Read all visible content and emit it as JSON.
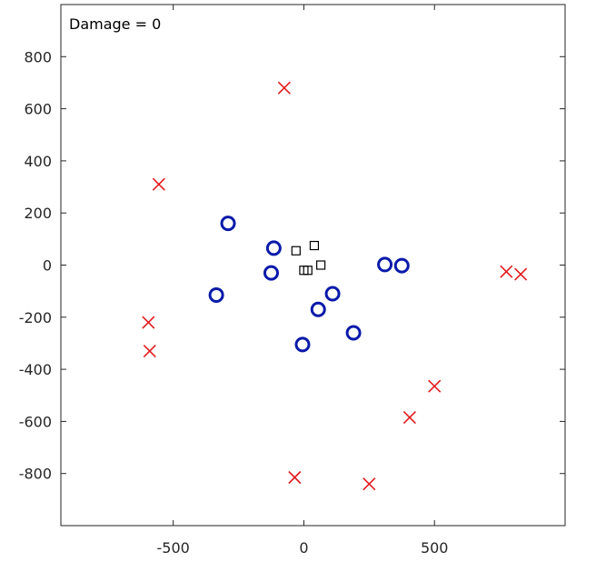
{
  "chart_data": {
    "type": "scatter",
    "title": "",
    "xlabel": "",
    "ylabel": "",
    "xlim": [
      -930,
      1000
    ],
    "ylim": [
      -1000,
      1000
    ],
    "xticks": [
      -500,
      0,
      500
    ],
    "yticks": [
      -800,
      -600,
      -400,
      -200,
      0,
      200,
      400,
      600,
      800
    ],
    "xtick_labels": [
      "-500",
      "0",
      "500"
    ],
    "ytick_labels": [
      "-800",
      "-600",
      "-400",
      "-200",
      "0",
      "200",
      "400",
      "600",
      "800"
    ],
    "grid": false,
    "annotation": "Damage = 0",
    "series": [
      {
        "marker": "x",
        "color": "#e31a1c",
        "points": [
          [
            -75,
            680
          ],
          [
            -555,
            310
          ],
          [
            -595,
            -220
          ],
          [
            -590,
            -330
          ],
          [
            775,
            -25
          ],
          [
            830,
            -35
          ],
          [
            500,
            -465
          ],
          [
            405,
            -585
          ],
          [
            -35,
            -815
          ],
          [
            250,
            -840
          ]
        ]
      },
      {
        "marker": "circle",
        "color": "#0a1aaa",
        "points": [
          [
            -290,
            160
          ],
          [
            -115,
            65
          ],
          [
            -125,
            -30
          ],
          [
            -335,
            -115
          ],
          [
            110,
            -110
          ],
          [
            55,
            -170
          ],
          [
            -5,
            -305
          ],
          [
            190,
            -260
          ],
          [
            310,
            2
          ],
          [
            375,
            -2
          ]
        ]
      },
      {
        "marker": "square",
        "color": "#000000",
        "points": [
          [
            -30,
            55
          ],
          [
            40,
            75
          ],
          [
            65,
            0
          ],
          [
            0,
            -20
          ],
          [
            15,
            -20
          ]
        ]
      }
    ]
  }
}
